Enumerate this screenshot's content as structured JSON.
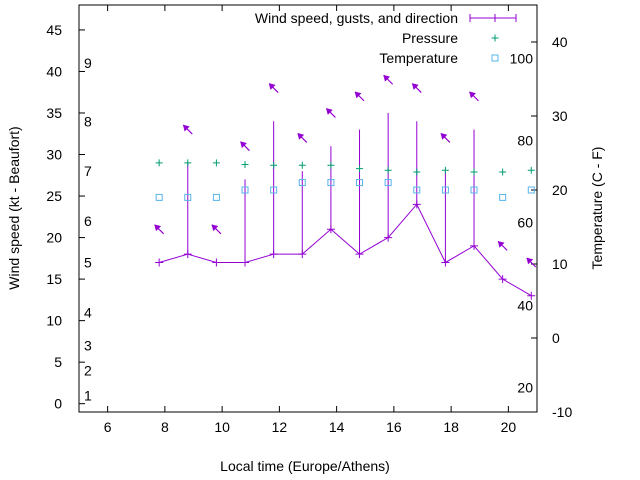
{
  "chart_data": {
    "type": "line",
    "xlabel": "Local time (Europe/Athens)",
    "ylabel": "Wind speed (kt - Beaufort)",
    "y2label": "Temperature (C - F)",
    "xlim": [
      5,
      21
    ],
    "ylim": [
      -1,
      48
    ],
    "y2lim": [
      -10,
      45
    ],
    "xticks": [
      6,
      8,
      10,
      12,
      14,
      16,
      18,
      20
    ],
    "yticks": [
      0,
      5,
      10,
      15,
      20,
      25,
      30,
      35,
      40,
      45
    ],
    "y2ticks": [
      -10,
      0,
      10,
      20,
      30,
      40
    ],
    "beaufort_labels": [
      {
        "text": "1",
        "y": 1
      },
      {
        "text": "2",
        "y": 4
      },
      {
        "text": "3",
        "y": 7
      },
      {
        "text": "4",
        "y": 11
      },
      {
        "text": "5",
        "y": 17
      },
      {
        "text": "6",
        "y": 22
      },
      {
        "text": "7",
        "y": 28
      },
      {
        "text": "8",
        "y": 34
      },
      {
        "text": "9",
        "y": 41
      }
    ],
    "fahrenheit_labels": [
      {
        "text": "20",
        "y": -6.7
      },
      {
        "text": "40",
        "y": 4.4
      },
      {
        "text": "60",
        "y": 15.6
      },
      {
        "text": "80",
        "y": 26.7
      },
      {
        "text": "100",
        "y": 37.8
      }
    ],
    "legend": [
      {
        "label": "Wind speed, gusts, and direction",
        "color": "#9400d3",
        "marker": "line"
      },
      {
        "label": "Pressure",
        "color": "#009e73",
        "marker": "plus"
      },
      {
        "label": "Temperature",
        "color": "#56b4e9",
        "marker": "square"
      }
    ],
    "series": {
      "wind": {
        "name": "Wind speed, gusts, and direction",
        "color": "#9400d3",
        "x": [
          7.8,
          8.8,
          9.8,
          10.8,
          11.8,
          12.8,
          13.8,
          14.8,
          15.8,
          16.8,
          17.8,
          18.8,
          19.8,
          20.8
        ],
        "speed": [
          17,
          18,
          17,
          17,
          18,
          18,
          21,
          18,
          20,
          24,
          17,
          19,
          15,
          13
        ],
        "gust": [
          17,
          29,
          17,
          27,
          34,
          28,
          31,
          33,
          35,
          34,
          28,
          33,
          15,
          13
        ],
        "direction_arrows": [
          {
            "x": 7.8,
            "y": 21,
            "dx": -1,
            "dy": 1
          },
          {
            "x": 8.8,
            "y": 33,
            "dx": -1,
            "dy": 1
          },
          {
            "x": 9.8,
            "y": 21,
            "dx": -1,
            "dy": 1
          },
          {
            "x": 10.8,
            "y": 31,
            "dx": -1,
            "dy": 1
          },
          {
            "x": 11.8,
            "y": 38,
            "dx": -1,
            "dy": 1
          },
          {
            "x": 12.8,
            "y": 32,
            "dx": -1,
            "dy": 1
          },
          {
            "x": 13.8,
            "y": 35,
            "dx": -1,
            "dy": 1
          },
          {
            "x": 14.8,
            "y": 37,
            "dx": -1,
            "dy": 1
          },
          {
            "x": 15.8,
            "y": 39,
            "dx": -1,
            "dy": 1
          },
          {
            "x": 16.8,
            "y": 38,
            "dx": -1,
            "dy": 1
          },
          {
            "x": 17.8,
            "y": 32,
            "dx": -1,
            "dy": 1
          },
          {
            "x": 18.8,
            "y": 37,
            "dx": -1,
            "dy": 1
          },
          {
            "x": 19.8,
            "y": 19,
            "dx": -1,
            "dy": 1
          },
          {
            "x": 20.8,
            "y": 17,
            "dx": -1,
            "dy": 1
          }
        ]
      },
      "pressure": {
        "name": "Pressure",
        "color": "#009e73",
        "x": [
          7.8,
          8.8,
          9.8,
          10.8,
          11.8,
          12.8,
          13.8,
          14.8,
          15.8,
          16.8,
          17.8,
          18.8,
          19.8,
          20.8
        ],
        "y": [
          29,
          29,
          29,
          28.8,
          28.7,
          28.7,
          28.7,
          28.3,
          28.1,
          27.9,
          28.1,
          27.9,
          27.9,
          28.1
        ]
      },
      "temperature": {
        "name": "Temperature",
        "color": "#56b4e9",
        "x": [
          7.8,
          8.8,
          9.8,
          10.8,
          11.8,
          12.8,
          13.8,
          14.8,
          15.8,
          16.8,
          17.8,
          18.8,
          19.8,
          20.8
        ],
        "y": [
          19,
          19,
          19,
          20,
          20,
          21,
          21,
          21,
          21,
          20,
          20,
          20,
          19,
          20
        ]
      }
    }
  }
}
